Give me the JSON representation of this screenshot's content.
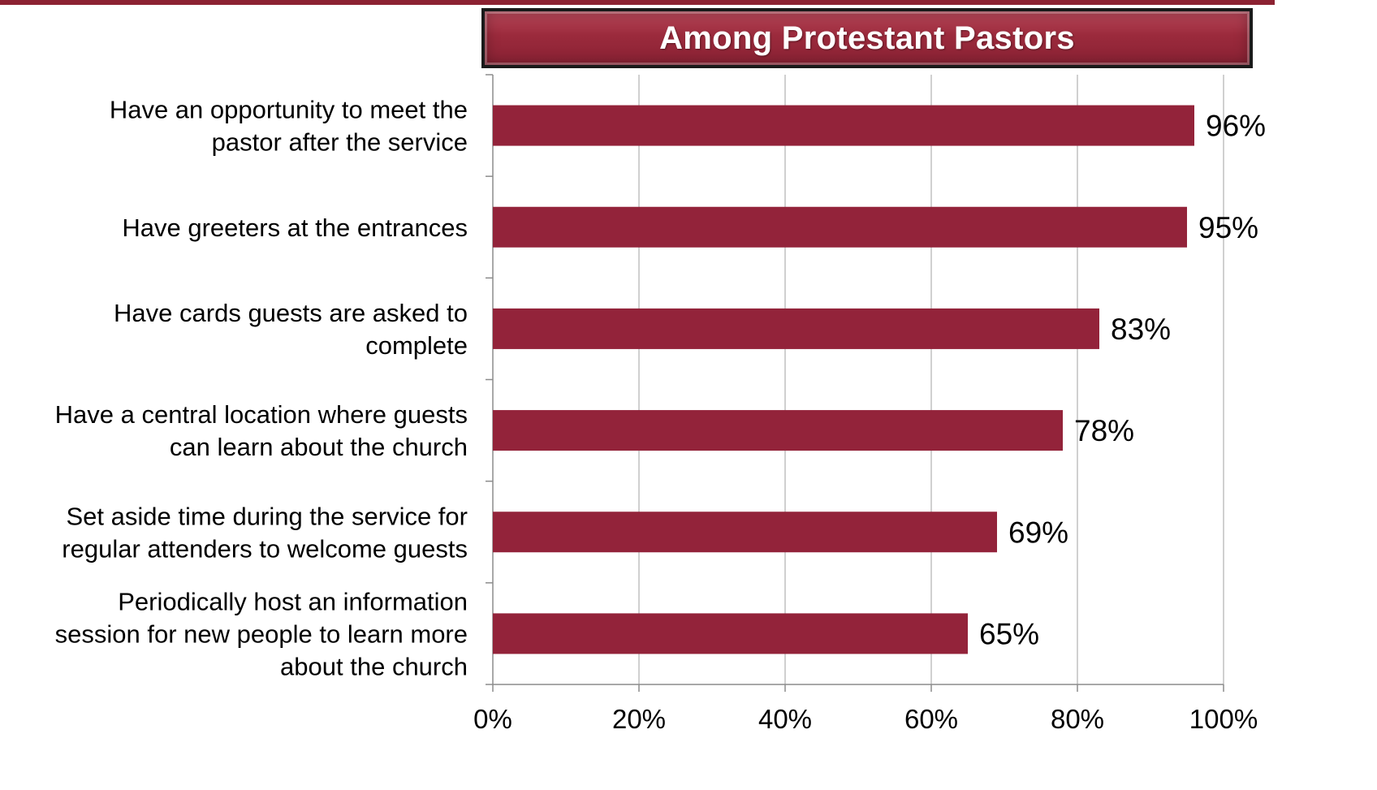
{
  "chart_data": {
    "type": "bar",
    "orientation": "horizontal",
    "title": "Among Protestant Pastors",
    "categories": [
      [
        "Have an opportunity to meet the",
        "pastor after the service"
      ],
      [
        "Have greeters at the entrances"
      ],
      [
        "Have cards guests are asked to",
        "complete"
      ],
      [
        "Have a central location where guests",
        "can learn about the church"
      ],
      [
        "Set aside time during the service for",
        "regular attenders to welcome guests"
      ],
      [
        "Periodically host an information",
        "session for new people to learn more",
        "about the church"
      ]
    ],
    "values": [
      96,
      95,
      83,
      78,
      69,
      65
    ],
    "value_labels": [
      "96%",
      "95%",
      "83%",
      "78%",
      "69%",
      "65%"
    ],
    "xlim": [
      0,
      100
    ],
    "xticks": [
      0,
      20,
      40,
      60,
      80,
      100
    ],
    "xtick_labels": [
      "0%",
      "20%",
      "40%",
      "60%",
      "80%",
      "100%"
    ],
    "xlabel": "",
    "ylabel": "",
    "grid": true,
    "legend": "none",
    "colors": {
      "bar": "#93233a",
      "banner": "#9b2a3c",
      "grid": "#c0c0c0",
      "axis": "#8c8c8c"
    }
  }
}
